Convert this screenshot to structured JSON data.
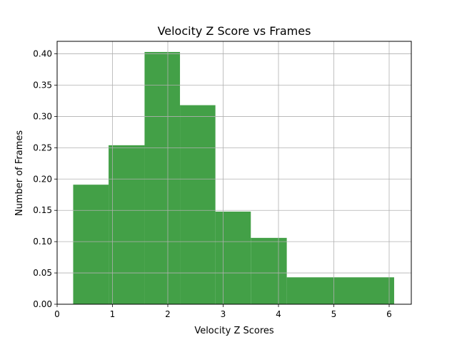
{
  "chart_data": {
    "type": "bar",
    "title": "Velocity Z Score vs Frames",
    "xlabel": "Velocity Z Scores",
    "ylabel": "Number of Frames",
    "xlim": [
      0,
      6.4
    ],
    "ylim": [
      0,
      0.42
    ],
    "grid": true,
    "bar_color": "#43a047",
    "x_ticks": [
      0,
      1,
      2,
      3,
      4,
      5,
      6
    ],
    "x_tick_labels": [
      "0",
      "1",
      "2",
      "3",
      "4",
      "5",
      "6"
    ],
    "y_ticks": [
      0.0,
      0.05,
      0.1,
      0.15,
      0.2,
      0.25,
      0.3,
      0.35,
      0.4
    ],
    "y_tick_labels": [
      "0.00",
      "0.05",
      "0.10",
      "0.15",
      "0.20",
      "0.25",
      "0.30",
      "0.35",
      "0.40"
    ],
    "bins": [
      {
        "x0": 0.29,
        "x1": 0.93,
        "value": 0.191
      },
      {
        "x0": 0.93,
        "x1": 1.58,
        "value": 0.254
      },
      {
        "x0": 1.58,
        "x1": 2.22,
        "value": 0.403
      },
      {
        "x0": 2.22,
        "x1": 2.86,
        "value": 0.318
      },
      {
        "x0": 2.86,
        "x1": 3.5,
        "value": 0.148
      },
      {
        "x0": 3.5,
        "x1": 4.15,
        "value": 0.106
      },
      {
        "x0": 4.15,
        "x1": 6.09,
        "value": 0.043
      }
    ]
  }
}
